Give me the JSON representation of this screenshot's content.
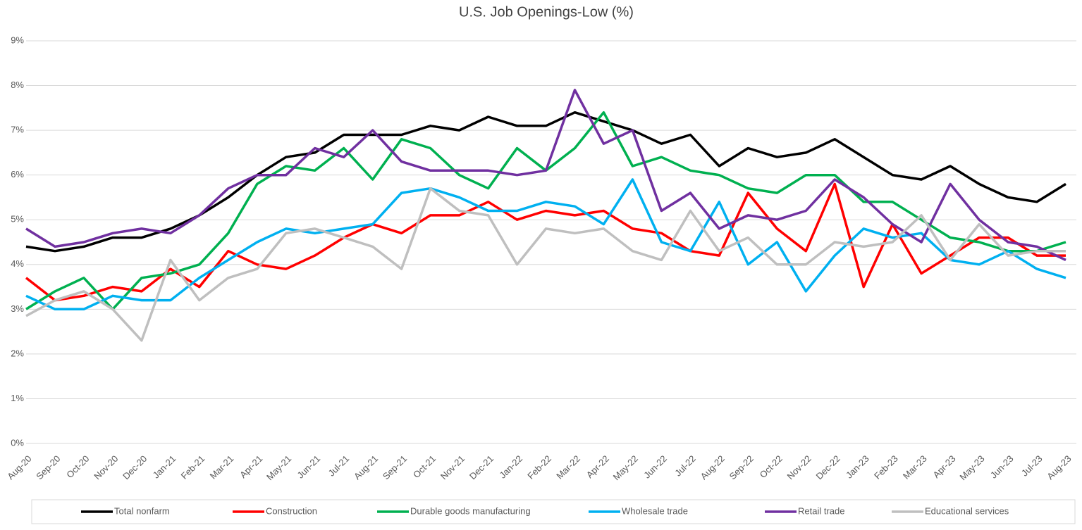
{
  "chart_data": {
    "type": "line",
    "title": "U.S. Job Openings-Low (%)",
    "categories": [
      "Aug-20",
      "Sep-20",
      "Oct-20",
      "Nov-20",
      "Dec-20",
      "Jan-21",
      "Feb-21",
      "Mar-21",
      "Apr-21",
      "May-21",
      "Jun-21",
      "Jul-21",
      "Aug-21",
      "Sep-21",
      "Oct-21",
      "Nov-21",
      "Dec-21",
      "Jan-22",
      "Feb-22",
      "Mar-22",
      "Apr-22",
      "May-22",
      "Jun-22",
      "Jul-22",
      "Aug-22",
      "Sep-22",
      "Oct-22",
      "Nov-22",
      "Dec-22",
      "Jan-23",
      "Feb-23",
      "Mar-23",
      "Apr-23",
      "May-23",
      "Jun-23",
      "Jul-23",
      "Aug-23"
    ],
    "series": [
      {
        "name": "Total nonfarm",
        "color": "#000000",
        "values": [
          4.4,
          4.3,
          4.4,
          4.6,
          4.6,
          4.8,
          5.1,
          5.5,
          6.0,
          6.4,
          6.5,
          6.9,
          6.9,
          6.9,
          7.1,
          7.0,
          7.3,
          7.1,
          7.1,
          7.4,
          7.2,
          7.0,
          6.7,
          6.9,
          6.2,
          6.6,
          6.4,
          6.5,
          6.8,
          6.4,
          6.0,
          5.9,
          6.2,
          5.8,
          5.5,
          5.4,
          5.8
        ]
      },
      {
        "name": "Construction",
        "color": "#ff0000",
        "values": [
          3.7,
          3.2,
          3.3,
          3.5,
          3.4,
          3.9,
          3.5,
          4.3,
          4.0,
          3.9,
          4.2,
          4.6,
          4.9,
          4.7,
          5.1,
          5.1,
          5.4,
          5.0,
          5.2,
          5.1,
          5.2,
          4.8,
          4.7,
          4.3,
          4.2,
          5.6,
          4.8,
          4.3,
          5.8,
          3.5,
          4.9,
          3.8,
          4.2,
          4.6,
          4.6,
          4.2,
          4.2
        ]
      },
      {
        "name": "Durable goods manufacturing",
        "color": "#00b050",
        "values": [
          3.0,
          3.4,
          3.7,
          3.0,
          3.7,
          3.8,
          4.0,
          4.7,
          5.8,
          6.2,
          6.1,
          6.6,
          5.9,
          6.8,
          6.6,
          6.0,
          5.7,
          6.6,
          6.1,
          6.6,
          7.4,
          6.2,
          6.4,
          6.1,
          6.0,
          5.7,
          5.6,
          6.0,
          6.0,
          5.4,
          5.4,
          5.0,
          4.6,
          4.5,
          4.3,
          4.3,
          4.5
        ]
      },
      {
        "name": "Wholesale trade",
        "color": "#00b0f0",
        "values": [
          3.3,
          3.0,
          3.0,
          3.3,
          3.2,
          3.2,
          3.7,
          4.1,
          4.5,
          4.8,
          4.7,
          4.8,
          4.9,
          5.6,
          5.7,
          5.5,
          5.2,
          5.2,
          5.4,
          5.3,
          4.9,
          5.9,
          4.5,
          4.3,
          5.4,
          4.0,
          4.5,
          3.4,
          4.2,
          4.8,
          4.6,
          4.7,
          4.1,
          4.0,
          4.3,
          3.9,
          3.7
        ]
      },
      {
        "name": "Retail trade",
        "color": "#7030a0",
        "values": [
          4.8,
          4.4,
          4.5,
          4.7,
          4.8,
          4.7,
          5.1,
          5.7,
          6.0,
          6.0,
          6.6,
          6.4,
          7.0,
          6.3,
          6.1,
          6.1,
          6.1,
          6.0,
          6.1,
          7.9,
          6.7,
          7.0,
          5.2,
          5.6,
          4.8,
          5.1,
          5.0,
          5.2,
          5.9,
          5.5,
          4.9,
          4.5,
          5.8,
          5.0,
          4.5,
          4.4,
          4.1
        ]
      },
      {
        "name": "Educational services",
        "color": "#bfbfbf",
        "values": [
          2.85,
          3.2,
          3.4,
          3.0,
          2.3,
          4.1,
          3.2,
          3.7,
          3.9,
          4.7,
          4.8,
          4.6,
          4.4,
          3.9,
          5.7,
          5.2,
          5.1,
          4.0,
          4.8,
          4.7,
          4.8,
          4.3,
          4.1,
          5.2,
          4.3,
          4.6,
          4.0,
          4.0,
          4.5,
          4.4,
          4.5,
          5.1,
          4.1,
          4.9,
          4.2,
          4.3,
          4.3
        ]
      }
    ],
    "ylim": [
      0,
      9
    ],
    "yticks": [
      {
        "value": 0,
        "label": "0%"
      },
      {
        "value": 1,
        "label": "1%"
      },
      {
        "value": 2,
        "label": "2%"
      },
      {
        "value": 3,
        "label": "3%"
      },
      {
        "value": 4,
        "label": "4%"
      },
      {
        "value": 5,
        "label": "5%"
      },
      {
        "value": 6,
        "label": "6%"
      },
      {
        "value": 7,
        "label": "7%"
      },
      {
        "value": 8,
        "label": "8%"
      },
      {
        "value": 9,
        "label": "9%"
      }
    ],
    "grid": true,
    "legend": "bottom"
  }
}
